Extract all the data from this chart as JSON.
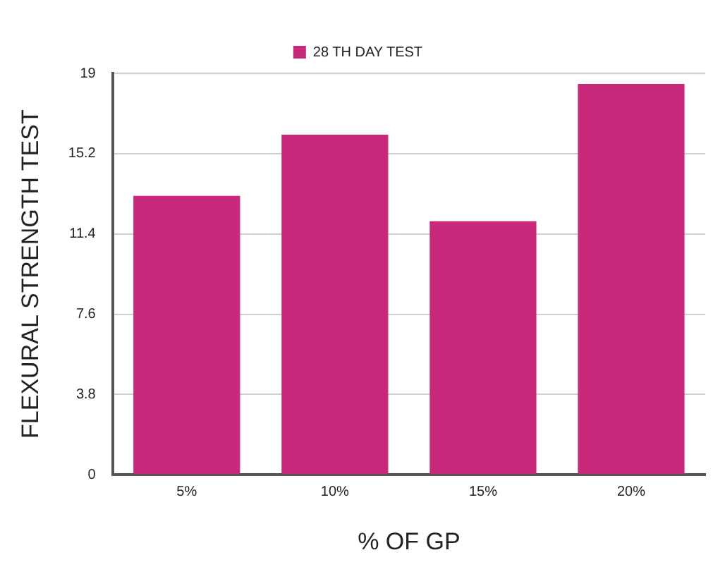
{
  "chart_data": {
    "type": "bar",
    "xlabel": "% OF GP",
    "ylabel": "FLEXURAL STRENGTH TEST",
    "categories": [
      "5%",
      "10%",
      "15%",
      "20%"
    ],
    "series": [
      {
        "name": "28 TH DAY TEST",
        "color": "#c8297a",
        "values": [
          13.2,
          16.1,
          12.0,
          18.5
        ]
      }
    ],
    "ylim": [
      0,
      19
    ],
    "yticks": [
      0,
      3.8,
      7.6,
      11.4,
      15.2,
      19
    ],
    "grid": "y",
    "legend": "top"
  }
}
